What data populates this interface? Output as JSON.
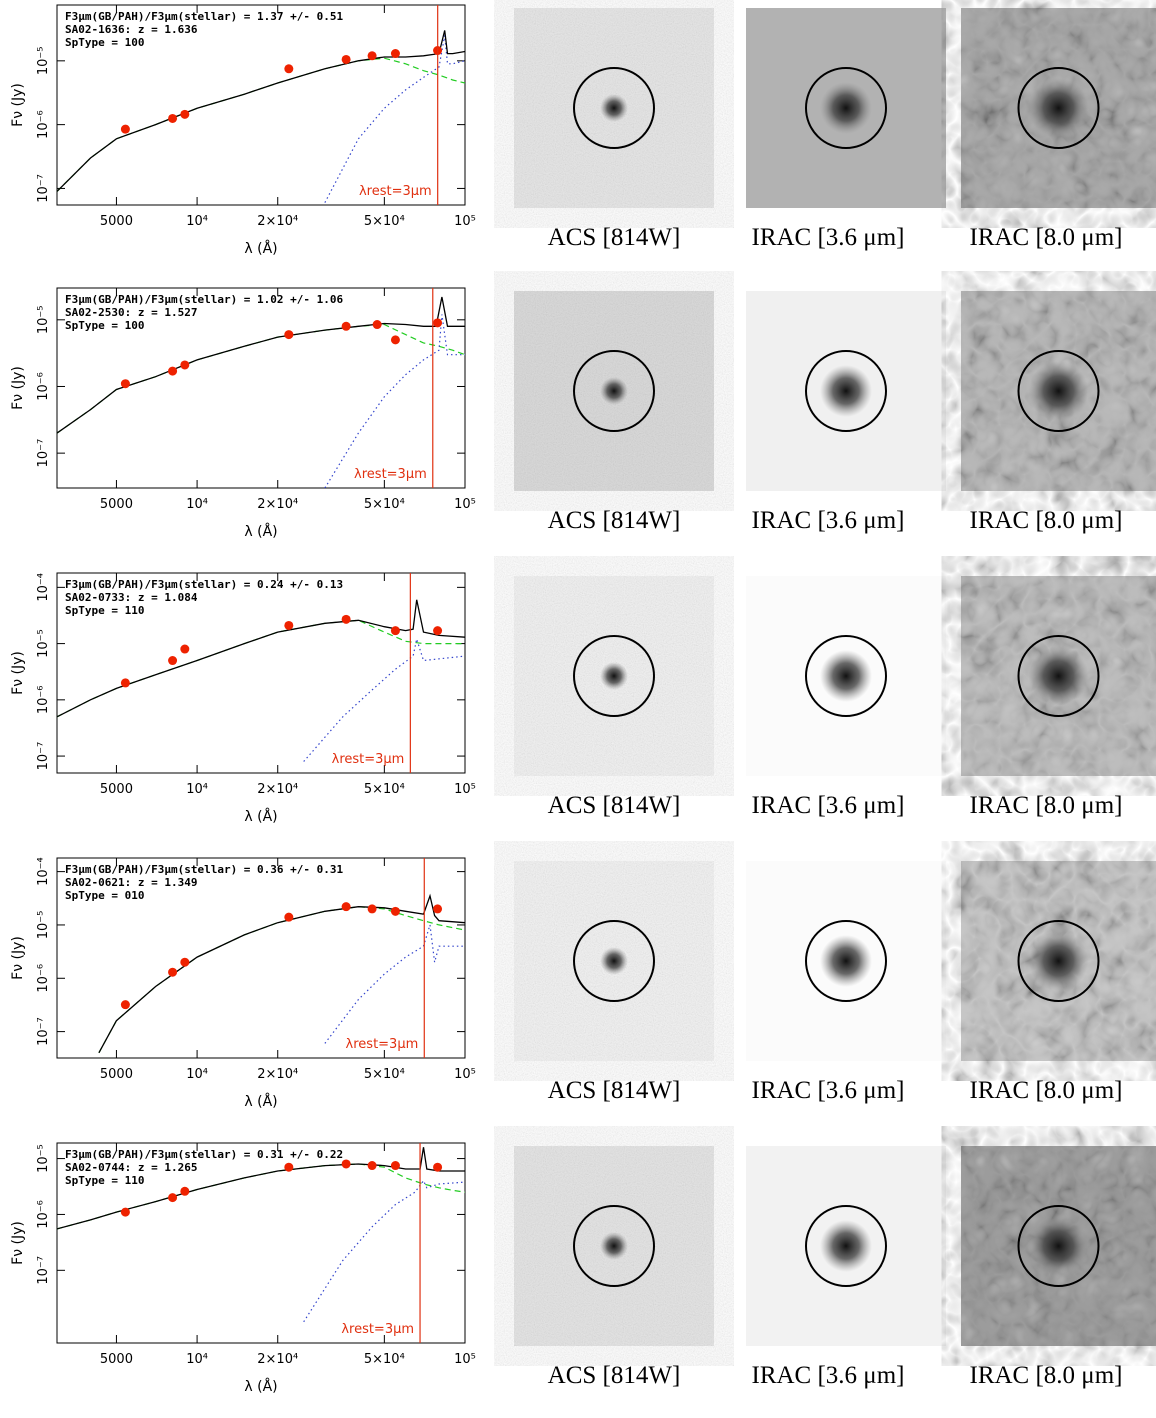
{
  "chart_data": [
    {
      "type": "line",
      "xlabel": "λ (Å)",
      "ylabel": "Fν (Jy)",
      "xlog": true,
      "ylog": true,
      "annotations": [
        "F3μm(GB/PAH)/F3μm(stellar) = 1.37 +/- 0.51",
        "SA02-1636: z = 1.636",
        "SpType = 100"
      ],
      "vline": {
        "x": 79080,
        "label": "λrest=3μm",
        "color": "#e03010"
      },
      "xlim": [
        3000,
        100000
      ],
      "ylim": [
        5.5e-08,
        7.5e-05
      ],
      "xticks": [
        5000,
        {
          "value": 10000,
          "label": "10⁴"
        },
        {
          "value": 20000,
          "label": "2×10⁴"
        },
        {
          "value": 50000,
          "label": "5×10⁴"
        },
        {
          "value": 100000,
          "label": "10⁵"
        }
      ],
      "yticks": [
        {
          "value": 1e-07,
          "label": "10⁻⁷"
        },
        {
          "value": 1e-06,
          "label": "10⁻⁶"
        },
        {
          "value": 1e-05,
          "label": "10⁻⁵"
        }
      ],
      "series": [
        {
          "color": "#22cc22",
          "style": "dashed",
          "x": [
            3000,
            4000,
            5000,
            7000,
            10000,
            15000,
            20000,
            30000,
            40000,
            50000,
            60000,
            70000,
            80000,
            90000,
            100000
          ],
          "values": [
            9e-08,
            3e-07,
            6e-07,
            1e-06,
            1.8e-06,
            3e-06,
            4.5e-06,
            7.5e-06,
            1e-05,
            1.1e-05,
            9e-06,
            7e-06,
            6e-06,
            5e-06,
            4.5e-06
          ]
        },
        {
          "color": "#3344cc",
          "style": "dotted",
          "x": [
            30000,
            40000,
            50000,
            60000,
            70000,
            80000,
            84000,
            86000,
            90000,
            100000
          ],
          "values": [
            6e-08,
            6e-07,
            1.8e-06,
            3.5e-06,
            5.5e-06,
            8e-06,
            2.5e-05,
            9e-06,
            9e-06,
            1e-05
          ]
        },
        {
          "color": "#000000",
          "style": "solid",
          "x": [
            3000,
            4000,
            5000,
            7000,
            10000,
            15000,
            20000,
            30000,
            40000,
            50000,
            60000,
            70000,
            80000,
            84000,
            86000,
            90000,
            100000
          ],
          "values": [
            9e-08,
            3e-07,
            6e-07,
            1e-06,
            1.8e-06,
            3e-06,
            4.5e-06,
            7.5e-06,
            1e-05,
            1.15e-05,
            1.15e-05,
            1.2e-05,
            1.3e-05,
            3e-05,
            1.3e-05,
            1.3e-05,
            1.4e-05
          ]
        },
        {
          "color": "#ee2200",
          "style": "points",
          "x": [
            5400,
            8100,
            9000,
            22000,
            36000,
            45000,
            55000,
            79000
          ],
          "values": [
            8.5e-07,
            1.25e-06,
            1.45e-06,
            7.5e-06,
            1.05e-05,
            1.2e-05,
            1.3e-05,
            1.45e-05
          ]
        }
      ]
    },
    {
      "type": "line",
      "xlabel": "λ (Å)",
      "ylabel": "Fν (Jy)",
      "xlog": true,
      "ylog": true,
      "annotations": [
        "F3μm(GB/PAH)/F3μm(stellar) = 1.02 +/- 1.06",
        "SA02-2530: z = 1.527",
        "SpType = 100"
      ],
      "vline": {
        "x": 75810,
        "label": "λrest=3μm",
        "color": "#e03010"
      },
      "xlim": [
        3000,
        100000
      ],
      "ylim": [
        3e-08,
        3e-05
      ],
      "xticks": [
        5000,
        {
          "value": 10000,
          "label": "10⁴"
        },
        {
          "value": 20000,
          "label": "2×10⁴"
        },
        {
          "value": 50000,
          "label": "5×10⁴"
        },
        {
          "value": 100000,
          "label": "10⁵"
        }
      ],
      "yticks": [
        {
          "value": 1e-07,
          "label": "10⁻⁷"
        },
        {
          "value": 1e-06,
          "label": "10⁻⁶"
        },
        {
          "value": 1e-05,
          "label": "10⁻⁵"
        }
      ],
      "series": [
        {
          "color": "#22cc22",
          "style": "dashed",
          "x": [
            3000,
            4000,
            5000,
            7000,
            10000,
            15000,
            20000,
            30000,
            40000,
            50000,
            60000,
            70000,
            80000,
            90000,
            100000
          ],
          "values": [
            2e-07,
            4.5e-07,
            9e-07,
            1.4e-06,
            2.5e-06,
            4e-06,
            5.5e-06,
            7e-06,
            8e-06,
            8.5e-06,
            6e-06,
            4.5e-06,
            4e-06,
            3.5e-06,
            3e-06
          ]
        },
        {
          "color": "#3344cc",
          "style": "dotted",
          "x": [
            30000,
            40000,
            50000,
            60000,
            70000,
            80000,
            82000,
            86000,
            100000
          ],
          "values": [
            3e-08,
            2e-07,
            7e-07,
            1.5e-06,
            2.5e-06,
            3.5e-06,
            1.2e-05,
            3e-06,
            3e-06
          ]
        },
        {
          "color": "#000000",
          "style": "solid",
          "x": [
            3000,
            4000,
            5000,
            7000,
            10000,
            15000,
            20000,
            30000,
            40000,
            50000,
            60000,
            70000,
            78000,
            82000,
            86000,
            100000
          ],
          "values": [
            2e-07,
            4.5e-07,
            9e-07,
            1.4e-06,
            2.5e-06,
            4e-06,
            5.5e-06,
            7e-06,
            8e-06,
            8.8e-06,
            8.5e-06,
            8e-06,
            8e-06,
            2.2e-05,
            8e-06,
            8e-06
          ]
        },
        {
          "color": "#ee2200",
          "style": "points",
          "x": [
            5400,
            8100,
            9000,
            22000,
            36000,
            47000,
            55000,
            79000
          ],
          "values": [
            1.1e-06,
            1.7e-06,
            2.1e-06,
            6e-06,
            8e-06,
            8.5e-06,
            5e-06,
            9e-06
          ]
        }
      ]
    },
    {
      "type": "line",
      "xlabel": "λ (Å)",
      "ylabel": "Fν (Jy)",
      "xlog": true,
      "ylog": true,
      "annotations": [
        "F3μm(GB/PAH)/F3μm(stellar) = 0.24 +/- 0.13",
        "SA02-0733: z = 1.084",
        "SpType = 110"
      ],
      "vline": {
        "x": 62520,
        "label": "λrest=3μm",
        "color": "#e03010"
      },
      "xlim": [
        3000,
        100000
      ],
      "ylim": [
        5e-08,
        0.00018
      ],
      "xticks": [
        5000,
        {
          "value": 10000,
          "label": "10⁴"
        },
        {
          "value": 20000,
          "label": "2×10⁴"
        },
        {
          "value": 50000,
          "label": "5×10⁴"
        },
        {
          "value": 100000,
          "label": "10⁵"
        }
      ],
      "yticks": [
        {
          "value": 1e-07,
          "label": "10⁻⁷"
        },
        {
          "value": 1e-06,
          "label": "10⁻⁶"
        },
        {
          "value": 1e-05,
          "label": "10⁻⁵"
        },
        {
          "value": 0.0001,
          "label": "10⁻⁴"
        }
      ],
      "series": [
        {
          "color": "#22cc22",
          "style": "dashed",
          "x": [
            3000,
            4000,
            5000,
            7000,
            10000,
            15000,
            20000,
            30000,
            40000,
            50000,
            60000,
            70000,
            80000,
            90000,
            100000
          ],
          "values": [
            5e-07,
            1e-06,
            1.6e-06,
            2.8e-06,
            5e-06,
            1e-05,
            1.6e-05,
            2.3e-05,
            2.6e-05,
            1.6e-05,
            1.1e-05,
            1e-05,
            1e-05,
            1e-05,
            1e-05
          ]
        },
        {
          "color": "#3344cc",
          "style": "dotted",
          "x": [
            25000,
            35000,
            45000,
            55000,
            64000,
            66000,
            70000,
            100000
          ],
          "values": [
            8e-08,
            5e-07,
            1.5e-06,
            3.5e-06,
            6e-06,
            1.2e-05,
            5e-06,
            6e-06
          ]
        },
        {
          "color": "#000000",
          "style": "solid",
          "x": [
            3000,
            4000,
            5000,
            7000,
            10000,
            15000,
            20000,
            30000,
            40000,
            50000,
            60000,
            64000,
            66000,
            70000,
            80000,
            100000
          ],
          "values": [
            5e-07,
            1e-06,
            1.6e-06,
            2.8e-06,
            5e-06,
            1e-05,
            1.6e-05,
            2.3e-05,
            2.6e-05,
            2e-05,
            1.7e-05,
            1.8e-05,
            6e-05,
            1.6e-05,
            1.4e-05,
            1.3e-05
          ]
        },
        {
          "color": "#ee2200",
          "style": "points",
          "x": [
            5400,
            8100,
            9000,
            22000,
            36000,
            55000,
            79000
          ],
          "values": [
            2e-06,
            5e-06,
            8e-06,
            2.1e-05,
            2.7e-05,
            1.7e-05,
            1.7e-05
          ]
        }
      ]
    },
    {
      "type": "line",
      "xlabel": "λ (Å)",
      "ylabel": "Fν (Jy)",
      "xlog": true,
      "ylog": true,
      "annotations": [
        "F3μm(GB/PAH)/F3μm(stellar) = 0.36 +/- 0.31",
        "SA02-0621: z = 1.349",
        "SpType = 010"
      ],
      "vline": {
        "x": 70470,
        "label": "λrest=3μm",
        "color": "#e03010"
      },
      "xlim": [
        3000,
        100000
      ],
      "ylim": [
        3.2e-08,
        0.00018
      ],
      "xticks": [
        5000,
        {
          "value": 10000,
          "label": "10⁴"
        },
        {
          "value": 20000,
          "label": "2×10⁴"
        },
        {
          "value": 50000,
          "label": "5×10⁴"
        },
        {
          "value": 100000,
          "label": "10⁵"
        }
      ],
      "yticks": [
        {
          "value": 1e-07,
          "label": "10⁻⁷"
        },
        {
          "value": 1e-06,
          "label": "10⁻⁶"
        },
        {
          "value": 1e-05,
          "label": "10⁻⁵"
        },
        {
          "value": 0.0001,
          "label": "10⁻⁴"
        }
      ],
      "series": [
        {
          "color": "#22cc22",
          "style": "dashed",
          "x": [
            4300,
            5000,
            7000,
            10000,
            15000,
            20000,
            30000,
            40000,
            50000,
            60000,
            70000,
            80000,
            100000
          ],
          "values": [
            4e-08,
            1.6e-07,
            7e-07,
            2.5e-06,
            6.5e-06,
            1.1e-05,
            1.8e-05,
            2.2e-05,
            2e-05,
            1.5e-05,
            1.2e-05,
            1e-05,
            8e-06
          ]
        },
        {
          "color": "#3344cc",
          "style": "dotted",
          "x": [
            30000,
            40000,
            50000,
            60000,
            70000,
            74000,
            77000,
            80000,
            100000
          ],
          "values": [
            6e-08,
            4e-07,
            1.2e-06,
            2.5e-06,
            4e-06,
            1e-05,
            2e-06,
            4e-06,
            4e-06
          ]
        },
        {
          "color": "#000000",
          "style": "solid",
          "x": [
            4300,
            5000,
            7000,
            10000,
            15000,
            20000,
            30000,
            40000,
            50000,
            60000,
            70000,
            74000,
            77000,
            80000,
            100000
          ],
          "values": [
            4e-08,
            1.6e-07,
            7e-07,
            2.5e-06,
            6.5e-06,
            1.1e-05,
            1.8e-05,
            2.2e-05,
            2.1e-05,
            1.8e-05,
            1.6e-05,
            3.5e-05,
            1.5e-05,
            1.2e-05,
            1.1e-05
          ]
        },
        {
          "color": "#ee2200",
          "style": "points",
          "x": [
            5400,
            8100,
            9000,
            22000,
            36000,
            45000,
            55000,
            79000
          ],
          "values": [
            3.2e-07,
            1.3e-06,
            2e-06,
            1.4e-05,
            2.2e-05,
            2e-05,
            1.8e-05,
            2e-05
          ]
        }
      ]
    },
    {
      "type": "line",
      "xlabel": "λ (Å)",
      "ylabel": "Fν (Jy)",
      "xlog": true,
      "ylog": true,
      "annotations": [
        "F3μm(GB/PAH)/F3μm(stellar) = 0.31 +/- 0.22",
        "SA02-0744: z = 1.265",
        "SpType = 110"
      ],
      "vline": {
        "x": 67950,
        "label": "λrest=3μm",
        "color": "#e03010"
      },
      "xlim": [
        3000,
        100000
      ],
      "ylim": [
        5e-09,
        1.9e-05
      ],
      "xticks": [
        5000,
        {
          "value": 10000,
          "label": "10⁴"
        },
        {
          "value": 20000,
          "label": "2×10⁴"
        },
        {
          "value": 50000,
          "label": "5×10⁴"
        },
        {
          "value": 100000,
          "label": "10⁵"
        }
      ],
      "yticks": [
        {
          "value": 1e-07,
          "label": "10⁻⁷"
        },
        {
          "value": 1e-06,
          "label": "10⁻⁶"
        },
        {
          "value": 1e-05,
          "label": "10⁻⁵"
        }
      ],
      "series": [
        {
          "color": "#22cc22",
          "style": "dashed",
          "x": [
            3000,
            4000,
            5000,
            7000,
            10000,
            15000,
            20000,
            30000,
            40000,
            50000,
            60000,
            70000,
            80000,
            90000,
            100000
          ],
          "values": [
            5.5e-07,
            8e-07,
            1.1e-06,
            1.7e-06,
            2.8e-06,
            4.5e-06,
            6e-06,
            7.5e-06,
            8e-06,
            7e-06,
            4.5e-06,
            3.5e-06,
            3e-06,
            2.7e-06,
            2.5e-06
          ]
        },
        {
          "color": "#3344cc",
          "style": "dotted",
          "x": [
            25000,
            35000,
            45000,
            55000,
            65000,
            70000,
            72000,
            80000,
            100000
          ],
          "values": [
            1.2e-08,
            1.5e-07,
            6e-07,
            1.5e-06,
            2.5e-06,
            4e-06,
            3e-06,
            3.5e-06,
            3.8e-06
          ]
        },
        {
          "color": "#000000",
          "style": "solid",
          "x": [
            3000,
            4000,
            5000,
            7000,
            10000,
            15000,
            20000,
            30000,
            40000,
            50000,
            60000,
            68000,
            70000,
            72000,
            80000,
            100000
          ],
          "values": [
            5.5e-07,
            8e-07,
            1.1e-06,
            1.7e-06,
            2.8e-06,
            4.5e-06,
            6e-06,
            7.5e-06,
            8e-06,
            7.5e-06,
            6.5e-06,
            6.5e-06,
            1.6e-05,
            6.5e-06,
            6e-06,
            6e-06
          ]
        },
        {
          "color": "#ee2200",
          "style": "points",
          "x": [
            5400,
            8100,
            9000,
            22000,
            36000,
            45000,
            55000,
            79000
          ],
          "values": [
            1.1e-06,
            2e-06,
            2.6e-06,
            7e-06,
            8e-06,
            7.5e-06,
            7.5e-06,
            7e-06
          ]
        }
      ]
    }
  ],
  "cutouts": [
    [
      "ACS [814W]",
      "IRAC [3.6 μm]",
      "IRAC [8.0 μm]"
    ],
    [
      "ACS [814W]",
      "IRAC [3.6 μm]",
      "IRAC [8.0 μm]"
    ],
    [
      "ACS [814W]",
      "IRAC [3.6 μm]",
      "IRAC [8.0 μm]"
    ],
    [
      "ACS [814W]",
      "IRAC [3.6 μm]",
      "IRAC [8.0 μm]"
    ],
    [
      "ACS [814W]",
      "IRAC [3.6 μm]",
      "IRAC [8.0 μm]"
    ]
  ]
}
